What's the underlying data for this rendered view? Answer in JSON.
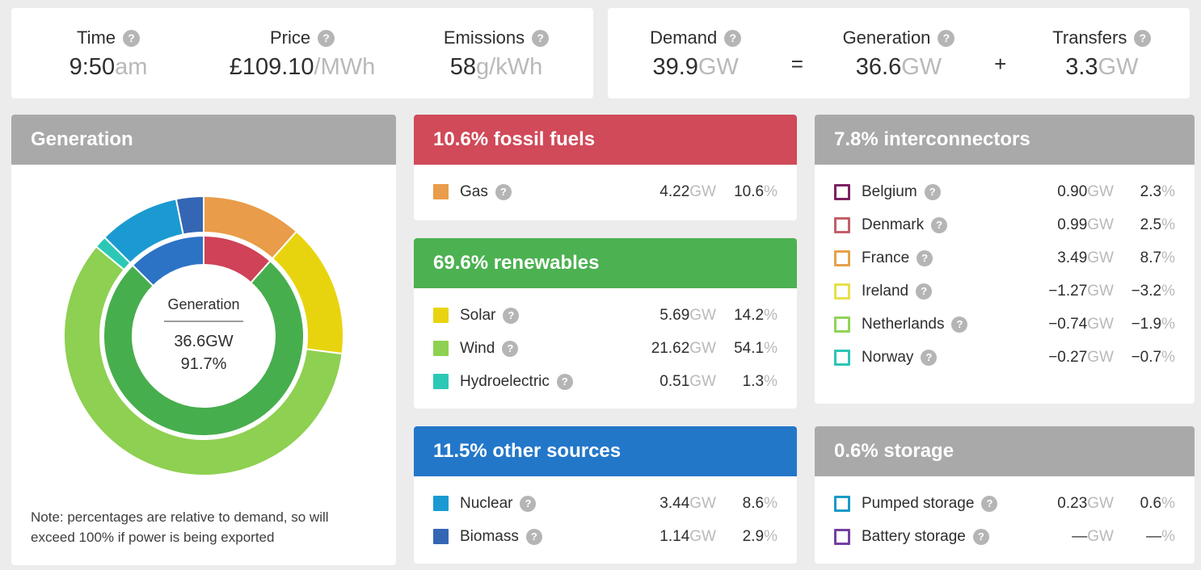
{
  "icons": {
    "help": "?"
  },
  "colors": {
    "background": "#ececec",
    "header_gray": "#a9a9a9",
    "header_red": "#d04a59",
    "header_green": "#4cb151",
    "header_blue": "#2377c9",
    "value_dark": "#2e2e2e",
    "unit_gray": "#b9b9b9"
  },
  "top_stats": {
    "left": [
      {
        "label": "Time",
        "value": "9:50",
        "unit": "am"
      },
      {
        "label": "Price",
        "value": "£109.10",
        "unit": "/MWh"
      },
      {
        "label": "Emissions",
        "value": "58",
        "unit": "g/kWh"
      }
    ],
    "right": [
      {
        "label": "Demand",
        "value": "39.9",
        "unit": "GW"
      },
      {
        "label": "Generation",
        "value": "36.6",
        "unit": "GW"
      },
      {
        "label": "Transfers",
        "value": "3.3",
        "unit": "GW"
      }
    ],
    "equals": "=",
    "plus": "+"
  },
  "generation_panel": {
    "title": "Generation",
    "center": {
      "label": "Generation",
      "value": "36.6GW",
      "percent": "91.7%"
    },
    "note": "Note: percentages are relative to demand, so will exceed 100% if power is being exported"
  },
  "chart_data": {
    "type": "donut",
    "title": "Generation",
    "center_label": "Generation",
    "center_value": "36.6GW",
    "center_percent": "91.7%",
    "note": "percentages are relative to demand",
    "outer_ring": [
      {
        "name": "Gas",
        "gw": 4.22,
        "percent": 10.6,
        "color": "#e99c49"
      },
      {
        "name": "Solar",
        "gw": 5.69,
        "percent": 14.2,
        "color": "#e8d40e"
      },
      {
        "name": "Wind",
        "gw": 21.62,
        "percent": 54.1,
        "color": "#8ed051"
      },
      {
        "name": "Hydroelectric",
        "gw": 0.51,
        "percent": 1.3,
        "color": "#2cc8b6"
      },
      {
        "name": "Nuclear",
        "gw": 3.44,
        "percent": 8.6,
        "color": "#1b9ad1"
      },
      {
        "name": "Biomass",
        "gw": 1.14,
        "percent": 2.9,
        "color": "#3566b4"
      }
    ],
    "inner_ring": [
      {
        "name": "fossil fuels",
        "percent": 10.6,
        "color": "#cf4257"
      },
      {
        "name": "renewables",
        "percent": 69.6,
        "color": "#47ae4d"
      },
      {
        "name": "other sources",
        "percent": 11.5,
        "color": "#2d73c5"
      }
    ]
  },
  "panels": {
    "fossil": {
      "title": "10.6% fossil fuels",
      "header_color": "#d04a59",
      "rows": [
        {
          "label": "Gas",
          "style": "filled",
          "color": "#e99c49",
          "value": "4.22",
          "unit": "GW",
          "percent": "10.6",
          "percent_unit": "%"
        }
      ]
    },
    "renewables": {
      "title": "69.6% renewables",
      "header_color": "#4cb151",
      "rows": [
        {
          "label": "Solar",
          "style": "filled",
          "color": "#e8d40e",
          "value": "5.69",
          "unit": "GW",
          "percent": "14.2",
          "percent_unit": "%"
        },
        {
          "label": "Wind",
          "style": "filled",
          "color": "#8ed051",
          "value": "21.62",
          "unit": "GW",
          "percent": "54.1",
          "percent_unit": "%"
        },
        {
          "label": "Hydroelectric",
          "style": "filled",
          "color": "#2cc8b6",
          "value": "0.51",
          "unit": "GW",
          "percent": "1.3",
          "percent_unit": "%"
        }
      ]
    },
    "other": {
      "title": "11.5% other sources",
      "header_color": "#2377c9",
      "rows": [
        {
          "label": "Nuclear",
          "style": "filled",
          "color": "#1b9ad1",
          "value": "3.44",
          "unit": "GW",
          "percent": "8.6",
          "percent_unit": "%"
        },
        {
          "label": "Biomass",
          "style": "filled",
          "color": "#3566b4",
          "value": "1.14",
          "unit": "GW",
          "percent": "2.9",
          "percent_unit": "%"
        }
      ]
    },
    "interconnectors": {
      "title": "7.8% interconnectors",
      "header_color": "#a9a9a9",
      "rows": [
        {
          "label": "Belgium",
          "style": "outline",
          "color": "#7b2261",
          "value": "0.90",
          "unit": "GW",
          "percent": "2.3",
          "percent_unit": "%"
        },
        {
          "label": "Denmark",
          "style": "outline",
          "color": "#c26069",
          "value": "0.99",
          "unit": "GW",
          "percent": "2.5",
          "percent_unit": "%"
        },
        {
          "label": "France",
          "style": "outline",
          "color": "#e5a14b",
          "value": "3.49",
          "unit": "GW",
          "percent": "8.7",
          "percent_unit": "%"
        },
        {
          "label": "Ireland",
          "style": "outline",
          "color": "#e7e04b",
          "value": "−1.27",
          "unit": "GW",
          "percent": "−3.2",
          "percent_unit": "%"
        },
        {
          "label": "Netherlands",
          "style": "outline",
          "color": "#90d457",
          "value": "−0.74",
          "unit": "GW",
          "percent": "−1.9",
          "percent_unit": "%"
        },
        {
          "label": "Norway",
          "style": "outline",
          "color": "#2cc5b6",
          "value": "−0.27",
          "unit": "GW",
          "percent": "−0.7",
          "percent_unit": "%"
        }
      ]
    },
    "storage": {
      "title": "0.6% storage",
      "header_color": "#a9a9a9",
      "rows": [
        {
          "label": "Pumped storage",
          "style": "outline",
          "color": "#1b9ac6",
          "value": "0.23",
          "unit": "GW",
          "percent": "0.6",
          "percent_unit": "%"
        },
        {
          "label": "Battery storage",
          "style": "outline",
          "color": "#7540a0",
          "value": "—",
          "unit": "GW",
          "percent": "—",
          "percent_unit": "%"
        }
      ]
    }
  }
}
